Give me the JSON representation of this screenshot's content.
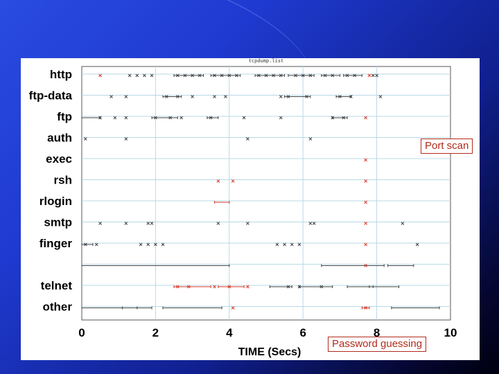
{
  "chart_data": {
    "type": "scatter",
    "title": "tcpdump.list",
    "xlabel": "TIME (Secs)",
    "ylabel": "",
    "xlim": [
      0,
      10
    ],
    "x_ticks": [
      0,
      2,
      4,
      6,
      8,
      10
    ],
    "grid": true,
    "categories": [
      "http",
      "ftp-data",
      "ftp",
      "auth",
      "exec",
      "rsh",
      "rlogin",
      "smtp",
      "finger",
      "",
      "telnet",
      "other"
    ],
    "series": [
      {
        "color": "#444444",
        "marker": "x",
        "points": [
          {
            "c": "http",
            "x": 1.3
          },
          {
            "c": "http",
            "x": 1.5
          },
          {
            "c": "http",
            "x": 1.7
          },
          {
            "c": "http",
            "x": 1.9
          },
          {
            "c": "http",
            "x": 2.6
          },
          {
            "c": "http",
            "x": 2.8
          },
          {
            "c": "http",
            "x": 3.0
          },
          {
            "c": "http",
            "x": 3.2
          },
          {
            "c": "http",
            "x": 3.6
          },
          {
            "c": "http",
            "x": 3.8
          },
          {
            "c": "http",
            "x": 4.0
          },
          {
            "c": "http",
            "x": 4.2
          },
          {
            "c": "http",
            "x": 4.8
          },
          {
            "c": "http",
            "x": 5.0
          },
          {
            "c": "http",
            "x": 5.2
          },
          {
            "c": "http",
            "x": 5.4
          },
          {
            "c": "http",
            "x": 5.8
          },
          {
            "c": "http",
            "x": 6.0
          },
          {
            "c": "http",
            "x": 6.2
          },
          {
            "c": "http",
            "x": 6.6
          },
          {
            "c": "http",
            "x": 6.8
          },
          {
            "c": "http",
            "x": 7.2
          },
          {
            "c": "http",
            "x": 7.4
          },
          {
            "c": "http",
            "x": 7.9
          },
          {
            "c": "http",
            "x": 8.0
          },
          {
            "c": "ftp-data",
            "x": 0.8
          },
          {
            "c": "ftp-data",
            "x": 1.2
          },
          {
            "c": "ftp-data",
            "x": 2.3
          },
          {
            "c": "ftp-data",
            "x": 2.6
          },
          {
            "c": "ftp-data",
            "x": 3.0
          },
          {
            "c": "ftp-data",
            "x": 3.6
          },
          {
            "c": "ftp-data",
            "x": 3.9
          },
          {
            "c": "ftp-data",
            "x": 5.4
          },
          {
            "c": "ftp-data",
            "x": 5.6
          },
          {
            "c": "ftp-data",
            "x": 6.1
          },
          {
            "c": "ftp-data",
            "x": 7.0
          },
          {
            "c": "ftp-data",
            "x": 7.3
          },
          {
            "c": "ftp-data",
            "x": 8.1
          },
          {
            "c": "ftp",
            "x": 0.5
          },
          {
            "c": "ftp",
            "x": 0.9
          },
          {
            "c": "ftp",
            "x": 1.2
          },
          {
            "c": "ftp",
            "x": 2.0
          },
          {
            "c": "ftp",
            "x": 2.4
          },
          {
            "c": "ftp",
            "x": 2.7
          },
          {
            "c": "ftp",
            "x": 3.5
          },
          {
            "c": "ftp",
            "x": 4.4
          },
          {
            "c": "ftp",
            "x": 5.4
          },
          {
            "c": "ftp",
            "x": 6.8
          },
          {
            "c": "ftp",
            "x": 7.1
          },
          {
            "c": "auth",
            "x": 0.1
          },
          {
            "c": "auth",
            "x": 1.2
          },
          {
            "c": "auth",
            "x": 4.5
          },
          {
            "c": "auth",
            "x": 6.2
          },
          {
            "c": "smtp",
            "x": 0.5
          },
          {
            "c": "smtp",
            "x": 1.2
          },
          {
            "c": "smtp",
            "x": 1.8
          },
          {
            "c": "smtp",
            "x": 1.9
          },
          {
            "c": "smtp",
            "x": 3.7
          },
          {
            "c": "smtp",
            "x": 4.5
          },
          {
            "c": "smtp",
            "x": 6.2
          },
          {
            "c": "smtp",
            "x": 6.3
          },
          {
            "c": "smtp",
            "x": 8.7
          },
          {
            "c": "finger",
            "x": 0.1
          },
          {
            "c": "finger",
            "x": 0.4
          },
          {
            "c": "finger",
            "x": 1.6
          },
          {
            "c": "finger",
            "x": 1.8
          },
          {
            "c": "finger",
            "x": 2.0
          },
          {
            "c": "finger",
            "x": 2.2
          },
          {
            "c": "finger",
            "x": 5.3
          },
          {
            "c": "finger",
            "x": 5.5
          },
          {
            "c": "finger",
            "x": 5.7
          },
          {
            "c": "finger",
            "x": 5.9
          },
          {
            "c": "finger",
            "x": 9.1
          },
          {
            "c": "telnet",
            "x": 5.6
          },
          {
            "c": "telnet",
            "x": 5.9
          },
          {
            "c": "telnet",
            "x": 6.5
          }
        ],
        "segments": [
          {
            "c": "http",
            "x0": 2.5,
            "x1": 3.3
          },
          {
            "c": "http",
            "x0": 3.5,
            "x1": 4.3
          },
          {
            "c": "http",
            "x0": 4.7,
            "x1": 5.5
          },
          {
            "c": "http",
            "x0": 5.6,
            "x1": 6.3
          },
          {
            "c": "http",
            "x0": 6.5,
            "x1": 7.0
          },
          {
            "c": "http",
            "x0": 7.1,
            "x1": 7.6
          },
          {
            "c": "ftp-data",
            "x0": 2.2,
            "x1": 2.7
          },
          {
            "c": "ftp-data",
            "x0": 5.5,
            "x1": 6.2
          },
          {
            "c": "ftp-data",
            "x0": 6.9,
            "x1": 7.3
          },
          {
            "c": "ftp",
            "x0": 0.0,
            "x1": 0.5
          },
          {
            "c": "ftp",
            "x0": 1.9,
            "x1": 2.6
          },
          {
            "c": "ftp",
            "x0": 3.4,
            "x1": 3.7
          },
          {
            "c": "ftp",
            "x0": 6.8,
            "x1": 7.2
          },
          {
            "c": "finger",
            "x0": 0.0,
            "x1": 0.3
          },
          {
            "c": "",
            "x0": 0.0,
            "x1": 4.0
          },
          {
            "c": "",
            "x0": 6.5,
            "x1": 8.2
          },
          {
            "c": "",
            "x0": 8.3,
            "x1": 9.0
          },
          {
            "c": "telnet",
            "x0": 5.1,
            "x1": 5.7
          },
          {
            "c": "telnet",
            "x0": 5.9,
            "x1": 6.8
          },
          {
            "c": "telnet",
            "x0": 7.2,
            "x1": 7.9
          },
          {
            "c": "telnet",
            "x0": 7.8,
            "x1": 8.6
          },
          {
            "c": "other",
            "x0": 0.0,
            "x1": 1.5
          },
          {
            "c": "other",
            "x0": 1.1,
            "x1": 1.9
          },
          {
            "c": "other",
            "x0": 2.2,
            "x1": 3.8
          },
          {
            "c": "other",
            "x0": 8.4,
            "x1": 9.7
          }
        ]
      },
      {
        "color": "#d93a2a",
        "marker": "x",
        "points": [
          {
            "c": "http",
            "x": 0.5
          },
          {
            "c": "http",
            "x": 7.8
          },
          {
            "c": "ftp",
            "x": 7.7
          },
          {
            "c": "exec",
            "x": 7.7
          },
          {
            "c": "rsh",
            "x": 3.7
          },
          {
            "c": "rsh",
            "x": 4.1
          },
          {
            "c": "rsh",
            "x": 7.7
          },
          {
            "c": "rlogin",
            "x": 7.7
          },
          {
            "c": "smtp",
            "x": 7.7
          },
          {
            "c": "finger",
            "x": 7.7
          },
          {
            "c": "",
            "x": 7.7
          },
          {
            "c": "telnet",
            "x": 2.6
          },
          {
            "c": "telnet",
            "x": 2.9
          },
          {
            "c": "telnet",
            "x": 3.6
          },
          {
            "c": "telnet",
            "x": 4.0
          },
          {
            "c": "telnet",
            "x": 4.5
          },
          {
            "c": "other",
            "x": 4.1
          },
          {
            "c": "other",
            "x": 7.7
          }
        ],
        "segments": [
          {
            "c": "rlogin",
            "x0": 3.6,
            "x1": 4.0
          },
          {
            "c": "telnet",
            "x0": 2.5,
            "x1": 3.5
          },
          {
            "c": "telnet",
            "x0": 3.7,
            "x1": 4.4
          },
          {
            "c": "other",
            "x0": 7.6,
            "x1": 7.8
          }
        ]
      }
    ]
  },
  "annotations": {
    "port_scan": "Port scan",
    "password_guessing": "Password guessing"
  }
}
